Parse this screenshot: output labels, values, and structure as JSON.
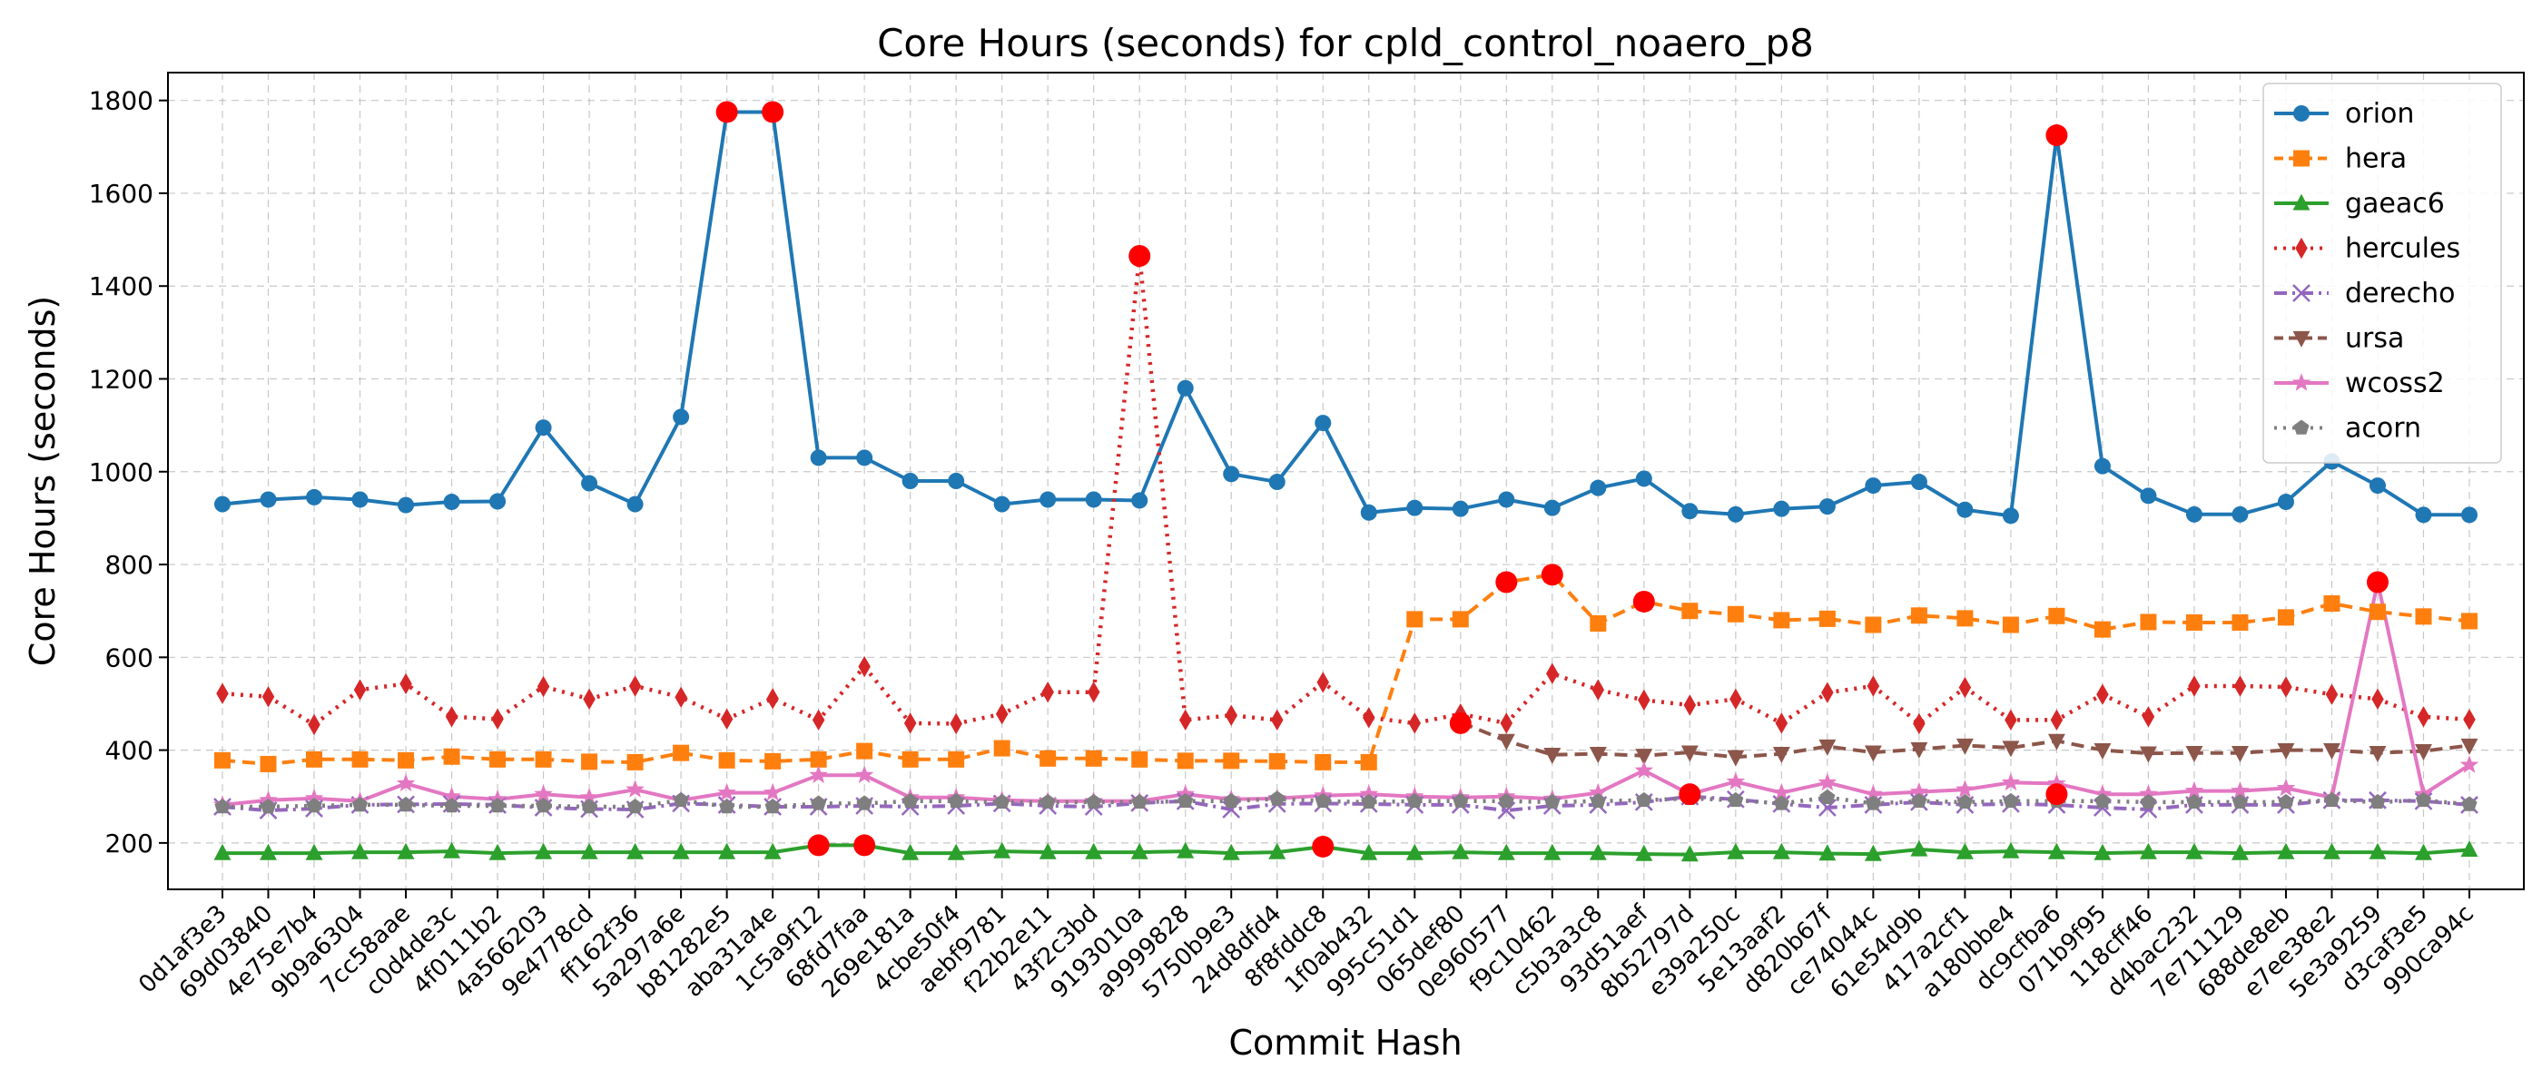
{
  "chart_data": {
    "type": "line",
    "title": "Core Hours (seconds) for cpld_control_noaero_p8",
    "xlabel": "Commit Hash",
    "ylabel": "Core Hours (seconds)",
    "ylim": [
      100,
      1860
    ],
    "yticks": [
      200,
      400,
      600,
      800,
      1000,
      1200,
      1400,
      1600,
      1800
    ],
    "grid": true,
    "legend_position": "top-right",
    "categories": [
      "0d1af3e3",
      "69d03840",
      "4e75e7b4",
      "9b9a6304",
      "7cc58aae",
      "c0d4de3c",
      "4f0111b2",
      "4a566203",
      "9e4778cd",
      "ff162f36",
      "5a297a6e",
      "b81282e5",
      "aba31a4e",
      "1c5a9f12",
      "68fd7faa",
      "269e181a",
      "4cbe50f4",
      "aebf9781",
      "f22b2e11",
      "43f2c3bd",
      "9193010a",
      "a9999828",
      "5750b9e3",
      "24d8dfd4",
      "8f8fddc8",
      "1f0ab432",
      "995c51d1",
      "065def80",
      "0e960577",
      "f9c10462",
      "c5b3a3c8",
      "93d51aef",
      "8b52797d",
      "e39a250c",
      "5e13aaf2",
      "d820b67f",
      "ce74044c",
      "61e54d9b",
      "417a2cf1",
      "a180bbe4",
      "dc9cfba6",
      "071b9f95",
      "118cff46",
      "d4bac232",
      "7e711129",
      "688de8eb",
      "e7ee38e2",
      "5e3a9259",
      "d3caf3e5",
      "990ca94c"
    ],
    "series": [
      {
        "name": "orion",
        "color": "#1f77b4",
        "dash": "solid",
        "marker": "circle",
        "values": [
          930,
          940,
          945,
          940,
          928,
          935,
          936,
          1095,
          975,
          930,
          1118,
          1775,
          1775,
          1030,
          1030,
          980,
          980,
          930,
          940,
          940,
          938,
          1180,
          995,
          978,
          1105,
          912,
          922,
          920,
          940,
          922,
          965,
          985,
          915,
          908,
          920,
          925,
          970,
          978,
          918,
          905,
          1725,
          1012,
          948,
          908,
          908,
          935,
          1022,
          970,
          907,
          907
        ]
      },
      {
        "name": "hera",
        "color": "#ff7f0e",
        "dash": "dashed",
        "marker": "square",
        "values": [
          378,
          370,
          380,
          380,
          378,
          386,
          380,
          380,
          375,
          374,
          394,
          378,
          376,
          380,
          398,
          380,
          380,
          404,
          382,
          382,
          380,
          377,
          377,
          376,
          374,
          374,
          682,
          682,
          762,
          778,
          673,
          720,
          700,
          693,
          680,
          683,
          670,
          690,
          684,
          670,
          689,
          660,
          676,
          675,
          675,
          686,
          716,
          698,
          688,
          678
        ]
      },
      {
        "name": "gaeac6",
        "color": "#2ca02c",
        "dash": "solid",
        "marker": "triangle",
        "values": [
          178,
          178,
          178,
          180,
          180,
          182,
          178,
          180,
          180,
          180,
          180,
          180,
          180,
          195,
          195,
          178,
          178,
          182,
          180,
          180,
          180,
          182,
          178,
          180,
          192,
          178,
          178,
          180,
          178,
          178,
          178,
          176,
          175,
          180,
          180,
          177,
          176,
          186,
          180,
          182,
          180,
          178,
          180,
          180,
          178,
          180,
          180,
          180,
          178,
          185
        ]
      },
      {
        "name": "hercules",
        "color": "#d62728",
        "dash": "dotted",
        "marker": "diamond",
        "values": [
          522,
          515,
          455,
          530,
          543,
          472,
          467,
          537,
          510,
          538,
          514,
          467,
          511,
          465,
          580,
          458,
          457,
          478,
          525,
          525,
          1465,
          465,
          475,
          465,
          546,
          470,
          458,
          478,
          458,
          565,
          530,
          508,
          497,
          510,
          458,
          524,
          538,
          457,
          535,
          465,
          465,
          520,
          472,
          538,
          538,
          536,
          520,
          510,
          472,
          466
        ]
      },
      {
        "name": "derecho",
        "color": "#9467bd",
        "dash": "dashdot",
        "marker": "x",
        "values": [
          278,
          270,
          274,
          282,
          283,
          284,
          282,
          276,
          273,
          272,
          285,
          282,
          278,
          278,
          280,
          278,
          280,
          285,
          280,
          278,
          286,
          290,
          272,
          284,
          285,
          284,
          282,
          282,
          270,
          280,
          282,
          288,
          300,
          294,
          284,
          276,
          282,
          288,
          282,
          284,
          282,
          276,
          272,
          282,
          282,
          282,
          292,
          292,
          290,
          282
        ]
      },
      {
        "name": "ursa",
        "color": "#8c564b",
        "dash": "dashed",
        "marker": "triangle-down",
        "values": [
          null,
          null,
          null,
          null,
          null,
          null,
          null,
          null,
          null,
          null,
          null,
          null,
          null,
          null,
          null,
          null,
          null,
          null,
          null,
          null,
          null,
          null,
          null,
          null,
          null,
          null,
          null,
          460,
          420,
          390,
          392,
          388,
          395,
          385,
          392,
          408,
          395,
          402,
          410,
          405,
          420,
          400,
          393,
          394,
          394,
          400,
          400,
          394,
          398,
          410
        ]
      },
      {
        "name": "wcoss2",
        "color": "#e377c2",
        "dash": "solid",
        "marker": "star",
        "values": [
          282,
          292,
          296,
          290,
          328,
          300,
          294,
          305,
          298,
          315,
          292,
          308,
          308,
          346,
          346,
          298,
          298,
          292,
          290,
          290,
          290,
          305,
          294,
          296,
          302,
          305,
          300,
          298,
          300,
          295,
          308,
          356,
          305,
          332,
          308,
          330,
          305,
          310,
          315,
          330,
          328,
          305,
          305,
          312,
          312,
          318,
          298,
          762,
          305,
          368
        ]
      },
      {
        "name": "acorn",
        "color": "#7f7f7f",
        "dash": "dotted",
        "marker": "pentagon",
        "values": [
          278,
          278,
          280,
          282,
          282,
          280,
          280,
          280,
          278,
          278,
          292,
          278,
          278,
          285,
          285,
          290,
          290,
          288,
          288,
          288,
          288,
          290,
          290,
          295,
          290,
          288,
          290,
          290,
          290,
          288,
          290,
          292,
          296,
          292,
          285,
          298,
          285,
          290,
          288,
          290,
          290,
          290,
          288,
          288,
          288,
          288,
          292,
          288,
          292,
          283
        ]
      }
    ],
    "highlighted_points": [
      {
        "category": "b81282e5",
        "value": 1775
      },
      {
        "category": "aba31a4e",
        "value": 1775
      },
      {
        "category": "9193010a",
        "value": 1465
      },
      {
        "category": "dc9cfba6",
        "value": 1725
      },
      {
        "category": "0e960577",
        "value": 762
      },
      {
        "category": "f9c10462",
        "value": 778
      },
      {
        "category": "93d51aef",
        "value": 720
      },
      {
        "category": "5e3a9259",
        "value": 762
      },
      {
        "category": "065def80",
        "value": 458
      },
      {
        "category": "1c5a9f12",
        "value": 195
      },
      {
        "category": "68fd7faa",
        "value": 195
      },
      {
        "category": "8f8fddc8",
        "value": 192
      },
      {
        "category": "8b52797d",
        "value": 305
      },
      {
        "category": "dc9cfba6",
        "value": 305
      }
    ]
  }
}
